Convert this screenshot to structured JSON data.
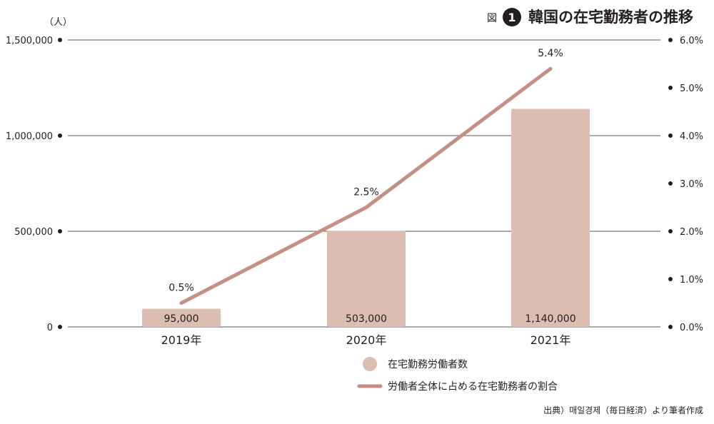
{
  "figure_label": "図",
  "figure_number": "1",
  "title": "韓国の在宅勤務者の推移",
  "left_unit": "（人）",
  "source": "出典）매일경제（毎日経済）より筆者作成",
  "colors": {
    "bar": "#dcbdb2",
    "line": "#c68f82",
    "grid": "#231f20",
    "dot": "#231f20"
  },
  "chart_data": {
    "type": "bar",
    "categories": [
      "2019年",
      "2020年",
      "2021年"
    ],
    "series": [
      {
        "name": "在宅勤務労働者数",
        "type": "bar",
        "axis": "left",
        "values": [
          95000,
          503000,
          1140000
        ],
        "labels": [
          "95,000",
          "503,000",
          "1,140,000"
        ]
      },
      {
        "name": "労働者全体に占める在宅勤務者の割合",
        "type": "line",
        "axis": "right",
        "values": [
          0.5,
          2.5,
          5.4
        ],
        "labels": [
          "0.5%",
          "2.5%",
          "5.4%"
        ]
      }
    ],
    "left_axis": {
      "ylim": [
        0,
        1500000
      ],
      "ticks": [
        0,
        500000,
        1000000,
        1500000
      ],
      "tick_labels": [
        "0",
        "500,000",
        "1,000,000",
        "1,500,000"
      ]
    },
    "right_axis": {
      "ylim": [
        0,
        6
      ],
      "ticks": [
        0,
        1,
        2,
        3,
        4,
        5,
        6
      ],
      "tick_labels": [
        "0.0%",
        "1.0%",
        "2.0%",
        "3.0%",
        "4.0%",
        "5.0%",
        "6.0%"
      ]
    },
    "grid": true,
    "legend_position": "bottom-right"
  }
}
